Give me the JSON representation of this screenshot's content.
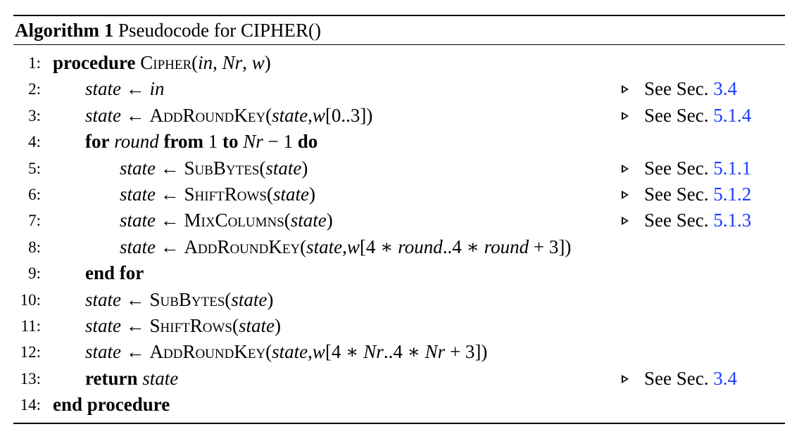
{
  "caption": {
    "label": "Algorithm 1",
    "text": "Pseudocode for CIPHER()"
  },
  "lines": [
    {
      "no": "1:",
      "indent": 0,
      "parts": [
        {
          "t": "procedure",
          "s": "kw"
        },
        {
          "t": " "
        },
        {
          "t": "Cipher",
          "s": "sc"
        },
        {
          "t": "("
        },
        {
          "t": "in",
          "s": "it"
        },
        {
          "t": ", "
        },
        {
          "t": "Nr",
          "s": "it"
        },
        {
          "t": ", "
        },
        {
          "t": "w",
          "s": "it"
        },
        {
          "t": ")"
        }
      ],
      "comment": null
    },
    {
      "no": "2:",
      "indent": 1,
      "parts": [
        {
          "t": "state",
          "s": "it"
        },
        {
          "t": " ← "
        },
        {
          "t": "in",
          "s": "it"
        }
      ],
      "comment": {
        "label": "See Sec.",
        "ref": "3.4"
      }
    },
    {
      "no": "3:",
      "indent": 1,
      "parts": [
        {
          "t": "state",
          "s": "it"
        },
        {
          "t": " ← "
        },
        {
          "t": "AddRoundKey",
          "s": "sc"
        },
        {
          "t": "("
        },
        {
          "t": "state",
          "s": "it"
        },
        {
          "t": ","
        },
        {
          "t": "w",
          "s": "it"
        },
        {
          "t": "[0..3])"
        }
      ],
      "comment": {
        "label": "See Sec.",
        "ref": "5.1.4"
      }
    },
    {
      "no": "4:",
      "indent": 1,
      "parts": [
        {
          "t": "for",
          "s": "kw"
        },
        {
          "t": " "
        },
        {
          "t": "round",
          "s": "it"
        },
        {
          "t": " "
        },
        {
          "t": "from",
          "s": "kw"
        },
        {
          "t": " 1 "
        },
        {
          "t": "to",
          "s": "kw"
        },
        {
          "t": " "
        },
        {
          "t": "Nr",
          "s": "it"
        },
        {
          "t": " − 1 "
        },
        {
          "t": "do",
          "s": "kw"
        }
      ],
      "comment": null
    },
    {
      "no": "5:",
      "indent": 2,
      "parts": [
        {
          "t": "state",
          "s": "it"
        },
        {
          "t": " ← "
        },
        {
          "t": "SubBytes",
          "s": "sc"
        },
        {
          "t": "("
        },
        {
          "t": "state",
          "s": "it"
        },
        {
          "t": ")"
        }
      ],
      "comment": {
        "label": "See Sec.",
        "ref": "5.1.1"
      }
    },
    {
      "no": "6:",
      "indent": 2,
      "parts": [
        {
          "t": "state",
          "s": "it"
        },
        {
          "t": " ← "
        },
        {
          "t": "ShiftRows",
          "s": "sc"
        },
        {
          "t": "("
        },
        {
          "t": "state",
          "s": "it"
        },
        {
          "t": ")"
        }
      ],
      "comment": {
        "label": "See Sec.",
        "ref": "5.1.2"
      }
    },
    {
      "no": "7:",
      "indent": 2,
      "parts": [
        {
          "t": "state",
          "s": "it"
        },
        {
          "t": " ← "
        },
        {
          "t": "MixColumns",
          "s": "sc"
        },
        {
          "t": "("
        },
        {
          "t": "state",
          "s": "it"
        },
        {
          "t": ")"
        }
      ],
      "comment": {
        "label": "See Sec.",
        "ref": "5.1.3"
      }
    },
    {
      "no": "8:",
      "indent": 2,
      "parts": [
        {
          "t": "state",
          "s": "it"
        },
        {
          "t": " ← "
        },
        {
          "t": "AddRoundKey",
          "s": "sc"
        },
        {
          "t": "("
        },
        {
          "t": "state",
          "s": "it"
        },
        {
          "t": ","
        },
        {
          "t": "w",
          "s": "it"
        },
        {
          "t": "[4 ∗ "
        },
        {
          "t": "round",
          "s": "it"
        },
        {
          "t": "..4 ∗ "
        },
        {
          "t": "round",
          "s": "it"
        },
        {
          "t": " + 3])"
        }
      ],
      "comment": null
    },
    {
      "no": "9:",
      "indent": 1,
      "parts": [
        {
          "t": "end for",
          "s": "kw"
        }
      ],
      "comment": null
    },
    {
      "no": "10:",
      "indent": 1,
      "parts": [
        {
          "t": "state",
          "s": "it"
        },
        {
          "t": " ← "
        },
        {
          "t": "SubBytes",
          "s": "sc"
        },
        {
          "t": "("
        },
        {
          "t": "state",
          "s": "it"
        },
        {
          "t": ")"
        }
      ],
      "comment": null
    },
    {
      "no": "11:",
      "indent": 1,
      "parts": [
        {
          "t": "state",
          "s": "it"
        },
        {
          "t": " ← "
        },
        {
          "t": "ShiftRows",
          "s": "sc"
        },
        {
          "t": "("
        },
        {
          "t": "state",
          "s": "it"
        },
        {
          "t": ")"
        }
      ],
      "comment": null
    },
    {
      "no": "12:",
      "indent": 1,
      "parts": [
        {
          "t": "state",
          "s": "it"
        },
        {
          "t": " ← "
        },
        {
          "t": "AddRoundKey",
          "s": "sc"
        },
        {
          "t": "("
        },
        {
          "t": "state",
          "s": "it"
        },
        {
          "t": ","
        },
        {
          "t": "w",
          "s": "it"
        },
        {
          "t": "[4 ∗ "
        },
        {
          "t": "Nr",
          "s": "it"
        },
        {
          "t": "..4 ∗ "
        },
        {
          "t": "Nr",
          "s": "it"
        },
        {
          "t": " + 3])"
        }
      ],
      "comment": null
    },
    {
      "no": "13:",
      "indent": 1,
      "parts": [
        {
          "t": "return",
          "s": "kw"
        },
        {
          "t": " "
        },
        {
          "t": "state",
          "s": "it"
        }
      ],
      "comment": {
        "label": "See Sec.",
        "ref": "3.4"
      }
    },
    {
      "no": "14:",
      "indent": 0,
      "parts": [
        {
          "t": "end procedure",
          "s": "kw"
        }
      ],
      "comment": null
    }
  ],
  "colors": {
    "text": "#000000",
    "link": "#1a3cff",
    "background": "#ffffff"
  }
}
